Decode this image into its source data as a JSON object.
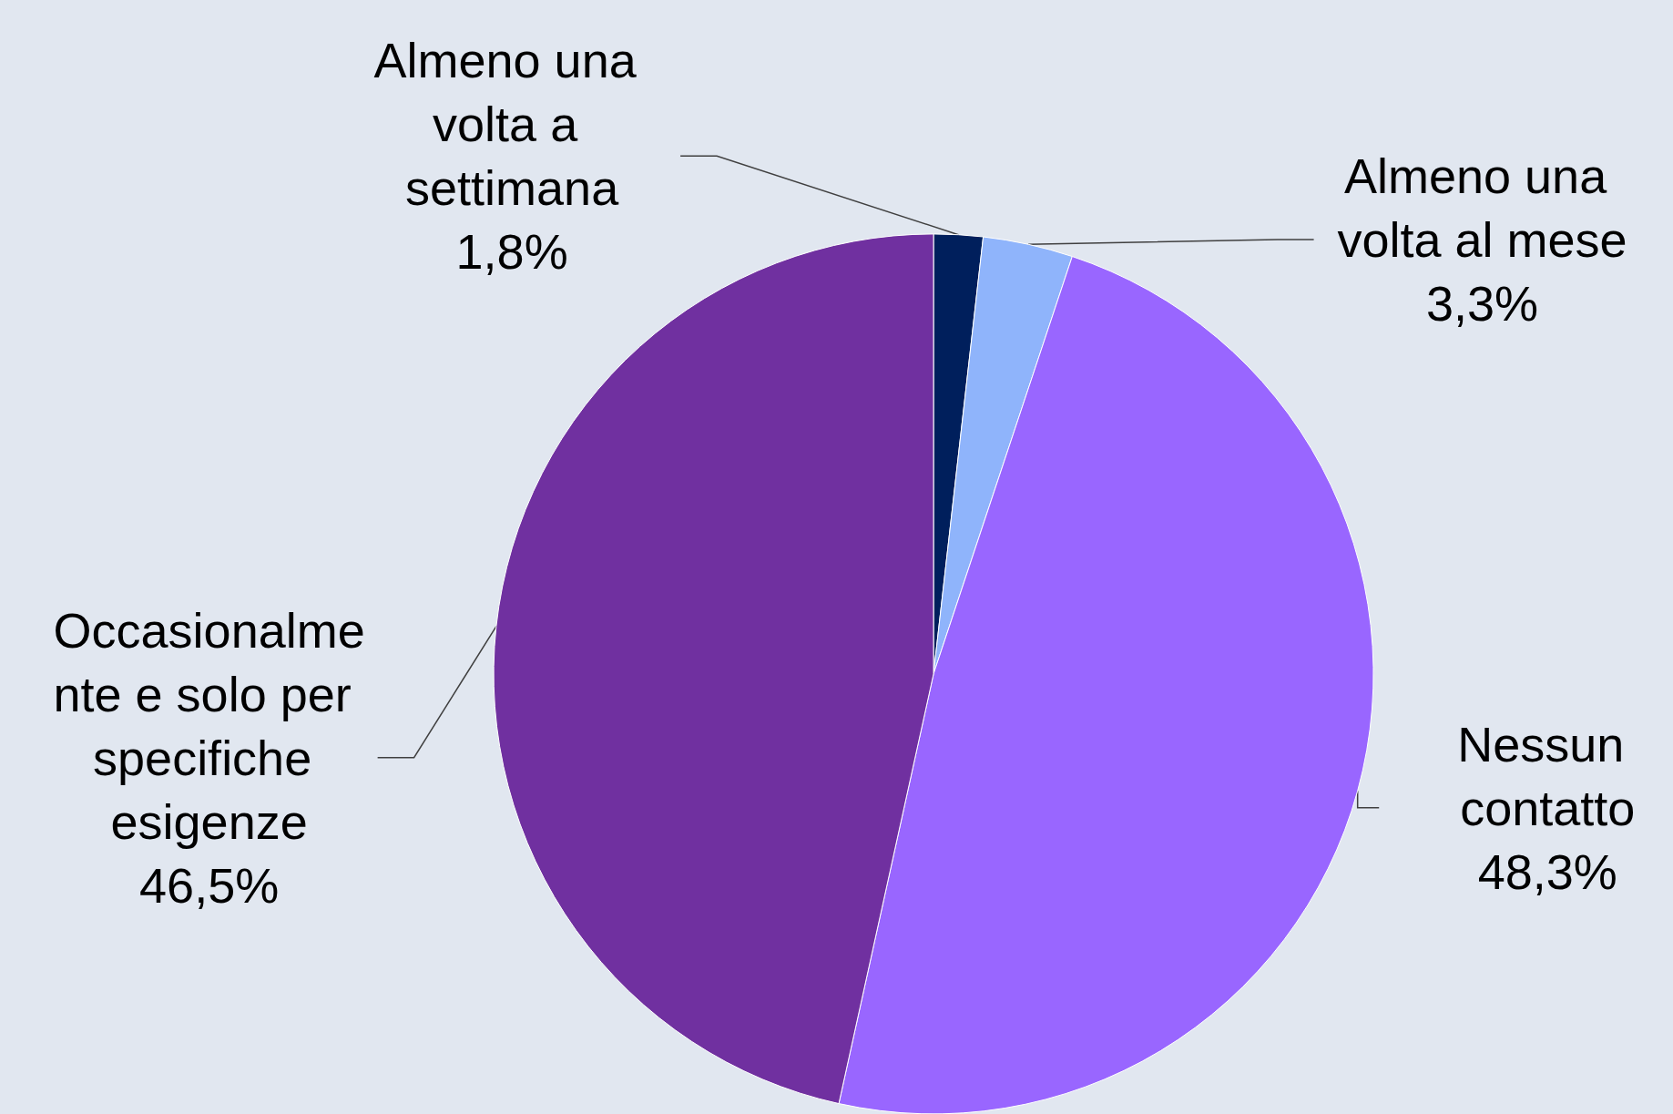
{
  "chart_data": {
    "type": "pie",
    "categories": [
      "Almeno una volta a settimana",
      "Almeno una volta al mese",
      "Nessun contatto",
      "Occasionalmente e solo per specifiche esigenze"
    ],
    "values": [
      1.8,
      3.3,
      48.3,
      46.5
    ],
    "value_labels": [
      "1,8%",
      "3,3%",
      "48,3%",
      "46,5%"
    ],
    "colors": [
      "#001f5c",
      "#8fb4fb",
      "#9966ff",
      "#7030a0"
    ],
    "legend": false
  }
}
